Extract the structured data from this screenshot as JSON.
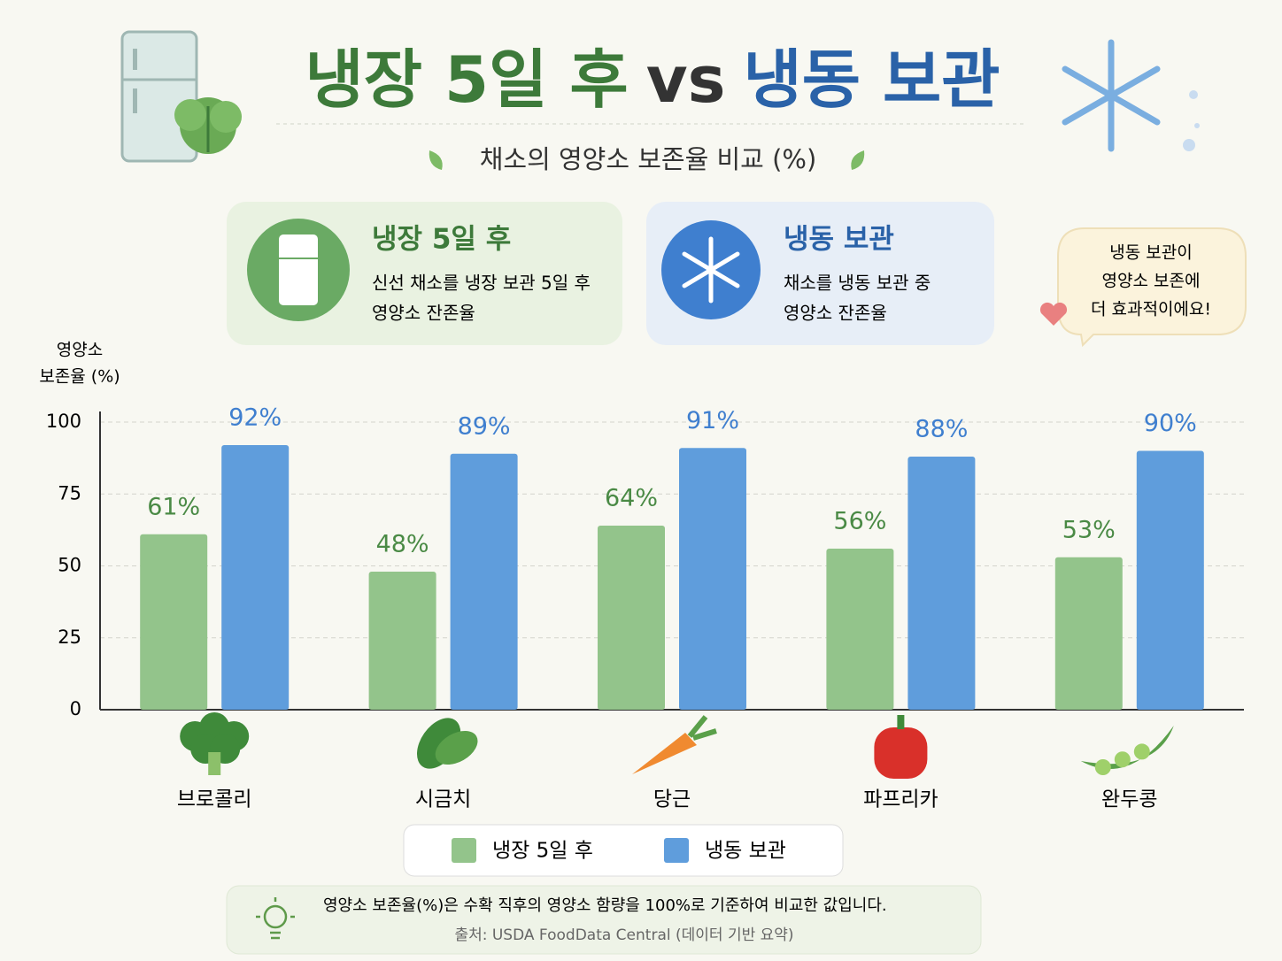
{
  "header": {
    "title_left": "냉장 5일 후",
    "title_vs": "vs",
    "title_right": "냉동 보관",
    "subtitle": "채소의 영양소 보존율 비교 (%)"
  },
  "cards": [
    {
      "title": "냉장 5일 후",
      "lines": [
        "신선 채소를 냉장 보관 5일 후",
        "영양소 잔존율"
      ]
    },
    {
      "title": "냉동 보관",
      "lines": [
        "채소를 냉동 보관 중",
        "영양소 잔존율"
      ]
    }
  ],
  "callout": [
    "냉동 보관이",
    "영양소 보존에",
    "더 효과적이에요!"
  ],
  "footer": {
    "note": "영양소 보존율(%)은 수확 직후의 영양소 함량을 100%로 기준하여 비교한 값입니다.",
    "source": "출처: USDA FoodData Central (데이터 기반 요약)"
  },
  "chart_data": {
    "type": "bar",
    "y_label": [
      "영양소",
      "보존율 (%)"
    ],
    "categories": [
      "브로콜리",
      "시금치",
      "당근",
      "파프리카",
      "완두콩"
    ],
    "series": [
      {
        "name": "냉장 5일 후",
        "color": "#93c48b",
        "label_color": "#4a8a45",
        "values": [
          61,
          48,
          64,
          56,
          53
        ],
        "value_labels": [
          "61%",
          "48%",
          "64%",
          "56%",
          "53%"
        ]
      },
      {
        "name": "냉동 보관",
        "color": "#5f9ddc",
        "label_color": "#3f7fcf",
        "values": [
          92,
          89,
          91,
          88,
          90
        ],
        "value_labels": [
          "92%",
          "89%",
          "91%",
          "88%",
          "90%"
        ]
      }
    ],
    "ylim": [
      0,
      100
    ],
    "yticks": [
      0,
      25,
      50,
      75,
      100
    ],
    "grid": true,
    "legend": "bottom"
  }
}
